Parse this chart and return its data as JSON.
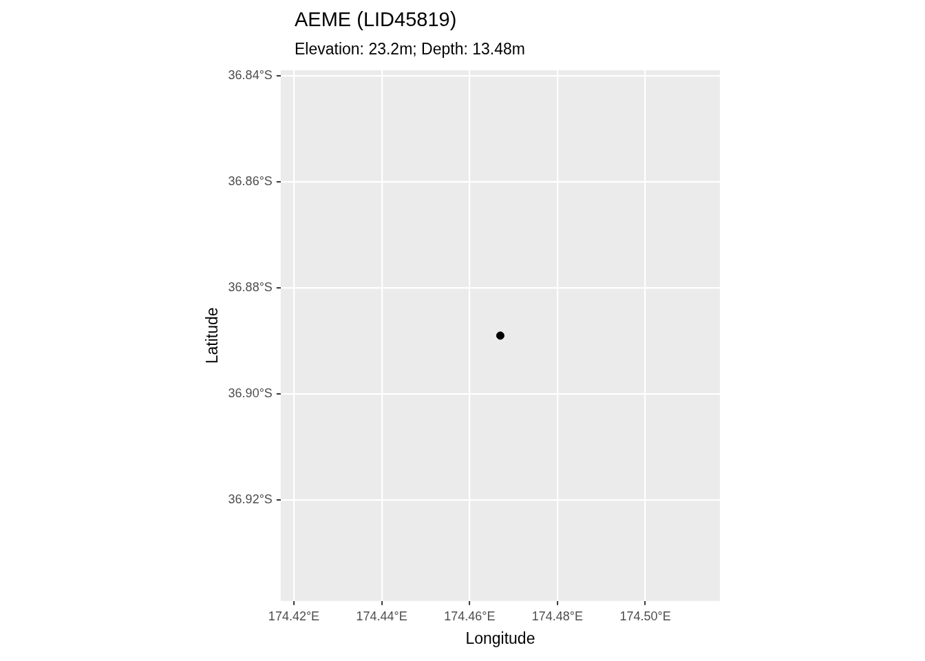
{
  "chart_data": {
    "type": "scatter",
    "title": "AEME (LID45819)",
    "subtitle": "Elevation: 23.2m; Depth: 13.48m",
    "xlabel": "Longitude",
    "ylabel": "Latitude",
    "x": [
      174.467
    ],
    "series": [
      {
        "color": "#000000",
        "values": [
          -36.889
        ]
      }
    ],
    "xlim": [
      174.417,
      174.517
    ],
    "ylim": [
      -36.939,
      -36.839
    ],
    "xticks": [
      {
        "value": 174.42,
        "label": "174.42°E"
      },
      {
        "value": 174.44,
        "label": "174.44°E"
      },
      {
        "value": 174.46,
        "label": "174.46°E"
      },
      {
        "value": 174.48,
        "label": "174.48°E"
      },
      {
        "value": 174.5,
        "label": "174.50°E"
      }
    ],
    "yticks": [
      {
        "value": -36.92,
        "label": "36.92°S"
      },
      {
        "value": -36.9,
        "label": "36.90°S"
      },
      {
        "value": -36.88,
        "label": "36.88°S"
      },
      {
        "value": -36.86,
        "label": "36.86°S"
      },
      {
        "value": -36.84,
        "label": "36.84°S"
      }
    ],
    "grid": true,
    "legend": false,
    "marker": "circle"
  }
}
